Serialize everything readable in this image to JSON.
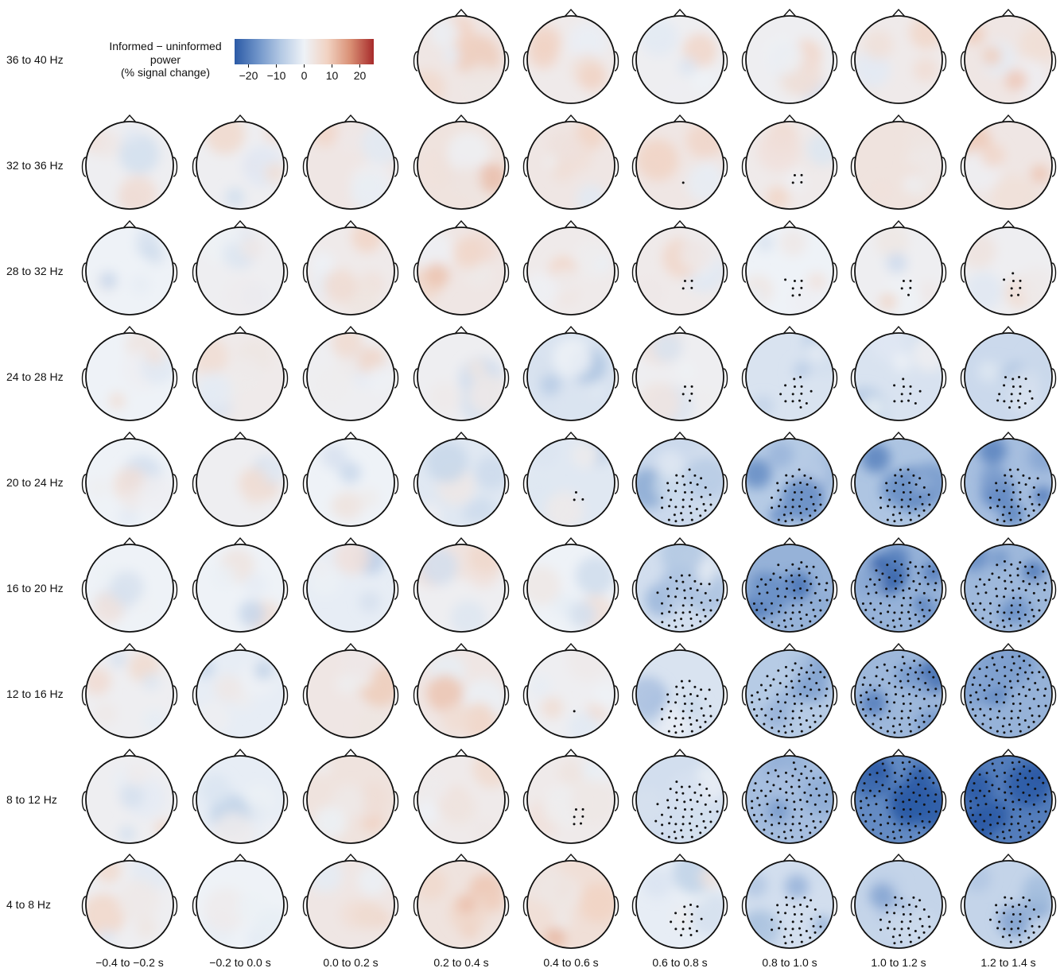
{
  "colorbar": {
    "title_lines": [
      "Informed − uninformed",
      "power",
      "(% signal change)"
    ],
    "range": [
      -25,
      25
    ],
    "ticks": [
      -20,
      -10,
      0,
      10,
      20
    ],
    "tick_labels": [
      "−20",
      "−10",
      "0",
      "10",
      "20"
    ],
    "colormap": [
      "#2b5aa6",
      "#6f94c9",
      "#b4c9e4",
      "#eef2f7",
      "#f1d2c2",
      "#d98f74",
      "#a72b2b"
    ]
  },
  "head_outline_color": "#111111",
  "electrode_marker_color": "#111111",
  "chart_data": {
    "type": "heatmap",
    "title": "",
    "rows": [
      "36 to 40 Hz",
      "32 to 36 Hz",
      "28 to 32 Hz",
      "24 to 28 Hz",
      "20 to 24 Hz",
      "16 to 20 Hz",
      "12 to 16 Hz",
      "8 to 12 Hz",
      "4 to 8 Hz"
    ],
    "columns": [
      "−0.4 to −0.2 s",
      "−0.2 to 0.0 s",
      "0.0 to 0.2 s",
      "0.2 to 0.4 s",
      "0.4 to 0.6 s",
      "0.6 to 0.8 s",
      "0.8 to 1.0 s",
      "1.0 to 1.2 s",
      "1.2 to 1.4 s"
    ],
    "value_label": "Informed − uninformed power (% signal change)",
    "missing_cells": [
      [
        0,
        0
      ],
      [
        0,
        1
      ],
      [
        0,
        2
      ]
    ],
    "mean_change": [
      [
        null,
        null,
        null,
        3,
        2,
        1,
        1,
        2,
        3
      ],
      [
        1,
        1,
        3,
        4,
        3,
        3,
        2,
        4,
        3
      ],
      [
        0,
        1,
        2,
        3,
        2,
        2,
        0,
        1,
        1
      ],
      [
        0,
        2,
        1,
        1,
        -3,
        1,
        -3,
        -3,
        -5
      ],
      [
        0,
        1,
        0,
        -2,
        -2,
        -5,
        -8,
        -9,
        -10
      ],
      [
        0,
        0,
        -1,
        1,
        0,
        -4,
        -12,
        -12,
        -11
      ],
      [
        1,
        -1,
        3,
        3,
        1,
        -3,
        -8,
        -11,
        -12
      ],
      [
        1,
        -1,
        4,
        2,
        2,
        -4,
        -10,
        -18,
        -20
      ],
      [
        1,
        0,
        3,
        4,
        5,
        -1,
        -4,
        -6,
        -6
      ]
    ],
    "significant_electrode_counts": [
      [
        null,
        null,
        null,
        0,
        0,
        0,
        0,
        0,
        0
      ],
      [
        0,
        0,
        0,
        0,
        0,
        1,
        4,
        0,
        0
      ],
      [
        0,
        0,
        0,
        0,
        0,
        4,
        7,
        5,
        8
      ],
      [
        0,
        0,
        0,
        0,
        0,
        5,
        14,
        11,
        19
      ],
      [
        0,
        0,
        0,
        0,
        3,
        38,
        38,
        39,
        40
      ],
      [
        0,
        0,
        0,
        0,
        0,
        44,
        66,
        70,
        68
      ],
      [
        0,
        0,
        0,
        0,
        1,
        40,
        74,
        80,
        84
      ],
      [
        0,
        0,
        0,
        0,
        6,
        49,
        80,
        100,
        100
      ],
      [
        0,
        0,
        0,
        0,
        0,
        16,
        36,
        36,
        34
      ]
    ]
  }
}
